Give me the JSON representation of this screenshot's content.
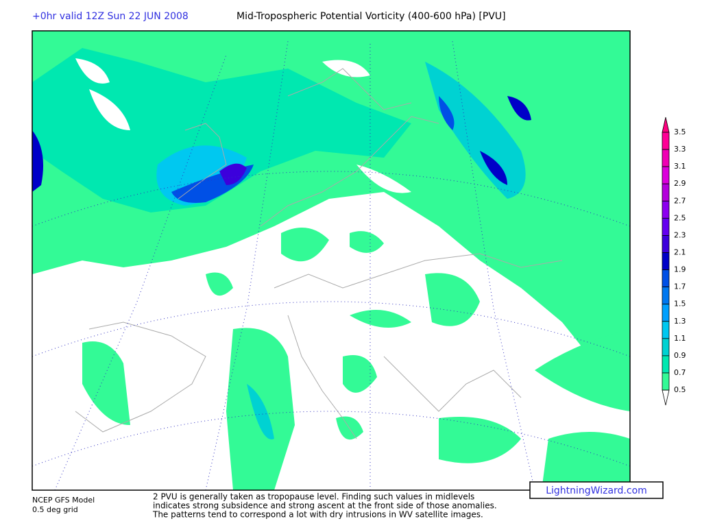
{
  "header": {
    "run": "+0hr valid 12Z Sun 22 JUN 2008",
    "title": "Mid-Tropospheric Potential Vorticity (400-600 hPa) [PVU]"
  },
  "colorbar": {
    "labels": [
      "3.5",
      "3.3",
      "3.1",
      "2.9",
      "2.7",
      "2.5",
      "2.3",
      "2.1",
      "1.9",
      "1.7",
      "1.5",
      "1.3",
      "1.1",
      "0.9",
      "0.7",
      "0.5"
    ],
    "colors": [
      "#ff0080",
      "#ff0096",
      "#f000b4",
      "#dc00dc",
      "#b400dc",
      "#8c00f0",
      "#6400f0",
      "#3c00dc",
      "#0000c8",
      "#0050e6",
      "#0078f0",
      "#00a0ff",
      "#00c8f0",
      "#00d2d2",
      "#00e8b0",
      "#33fa96",
      "#ffffff"
    ]
  },
  "footer": {
    "model": [
      "NCEP GFS Model",
      "0.5 deg grid"
    ],
    "note": [
      "2 PVU is generally taken as tropopause level. Finding such values in midlevels",
      "indicates strong subsidence and strong ascent at the front side of those anomalies.",
      "The patterns tend to correspond a lot with dry intrusions in WV satellite images."
    ],
    "credit": "LightningWizard.com"
  }
}
